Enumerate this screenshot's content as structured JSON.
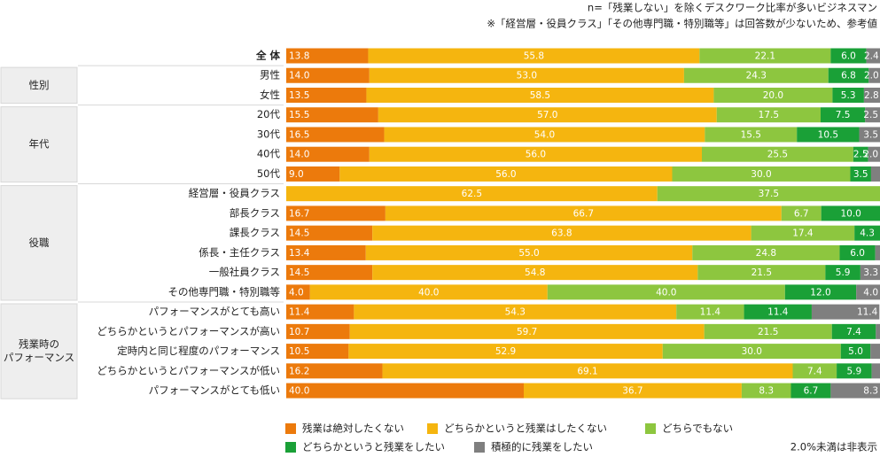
{
  "chart_data": {
    "type": "stacked-bar-horizontal",
    "notes": [
      "n=「残業しない」を除くデスクワーク比率が多いビジネスマン",
      "※「経営層・役員クラス」「その他専門職・特別職等」は回答数が少ないため、参考値"
    ],
    "footnote": "2.0%未満は非表示",
    "xlim": [
      0,
      100
    ],
    "categories": [
      "全 体",
      "男性",
      "女性",
      "20代",
      "30代",
      "40代",
      "50代",
      "経営層・役員クラス",
      "部長クラス",
      "課長クラス",
      "係長・主任クラス",
      "一般社員クラス",
      "その他専門職・特別職等",
      "パフォーマンスがとても高い",
      "どちらかというとパフォーマンスが高い",
      "定時内と同じ程度のパフォーマンス",
      "どちらかというとパフォーマンスが低い",
      "パフォーマンスがとても低い"
    ],
    "groups": [
      {
        "label": [
          "性別"
        ],
        "rows": [
          1,
          2
        ]
      },
      {
        "label": [
          "年代"
        ],
        "rows": [
          3,
          6
        ]
      },
      {
        "label": [
          "役職"
        ],
        "rows": [
          7,
          12
        ]
      },
      {
        "label": [
          "残業時の",
          "パフォーマンス"
        ],
        "rows": [
          13,
          17
        ]
      }
    ],
    "series": [
      {
        "name": "残業は絶対したくない",
        "color": "#ec7a0c",
        "values": [
          13.8,
          14,
          13.5,
          15.5,
          16.5,
          14,
          9,
          0,
          16.7,
          14.5,
          13.4,
          14.5,
          4,
          11.4,
          10.7,
          10.5,
          16.2,
          40
        ],
        "value_labels": [
          "13.8",
          "14.0",
          "13.5",
          "15.5",
          "16.5",
          "14.0",
          "9.0",
          null,
          "16.7",
          "14.5",
          "13.4",
          "14.5",
          "4.0",
          "11.4",
          "10.7",
          "10.5",
          "16.2",
          "40.0"
        ]
      },
      {
        "name": "どちらかというと残業はしたくない",
        "color": "#f5b50f",
        "values": [
          55.8,
          53,
          58.5,
          57,
          54,
          56,
          56,
          62.5,
          66.7,
          63.8,
          55,
          54.8,
          40,
          54.3,
          59.7,
          52.9,
          69.1,
          36.7
        ],
        "value_labels": [
          "55.8",
          "53.0",
          "58.5",
          "57.0",
          "54.0",
          "56.0",
          "56.0",
          "62.5",
          "66.7",
          "63.8",
          "55.0",
          "54.8",
          "40.0",
          "54.3",
          "59.7",
          "52.9",
          "69.1",
          "36.7"
        ]
      },
      {
        "name": "どちらでもない",
        "color": "#8dc63f",
        "values": [
          22.1,
          24.3,
          20,
          17.5,
          15.5,
          25.5,
          30,
          37.5,
          6.7,
          17.4,
          24.8,
          21.5,
          40,
          11.4,
          21.5,
          30,
          7.4,
          8.3
        ],
        "value_labels": [
          "22.1",
          "24.3",
          "20.0",
          "17.5",
          "15.5",
          "25.5",
          "30.0",
          "37.5",
          "6.7",
          "17.4",
          "24.8",
          "21.5",
          "40.0",
          "11.4",
          "21.5",
          "30.0",
          "7.4",
          "8.3"
        ]
      },
      {
        "name": "どちらかというと残業をしたい",
        "color": "#1aa037",
        "values": [
          6,
          6.8,
          5.3,
          7.5,
          10.5,
          2.5,
          3.5,
          0,
          10,
          4.3,
          6,
          5.9,
          12,
          11.4,
          7.4,
          5,
          5.9,
          6.7
        ],
        "value_labels": [
          "6.0",
          "6.8",
          "5.3",
          "7.5",
          "10.5",
          "2.5",
          "3.5",
          null,
          "10.0",
          "4.3",
          "6.0",
          "5.9",
          "12.0",
          "11.4",
          "7.4",
          "5.0",
          "5.9",
          "6.7"
        ]
      },
      {
        "name": "積極的に残業をしたい",
        "color": "#7f7f7f",
        "values": [
          2.4,
          2,
          2.8,
          2.5,
          3.5,
          2,
          1.5,
          0,
          0,
          0,
          0.8,
          3.3,
          4,
          11.4,
          0.7,
          1.6,
          1.4,
          8.3
        ],
        "value_labels": [
          "2.4",
          "2.0",
          "2.8",
          "2.5",
          "3.5",
          "2.0",
          null,
          null,
          null,
          null,
          null,
          "3.3",
          "4.0",
          "11.4",
          null,
          null,
          null,
          "8.3"
        ]
      }
    ]
  }
}
